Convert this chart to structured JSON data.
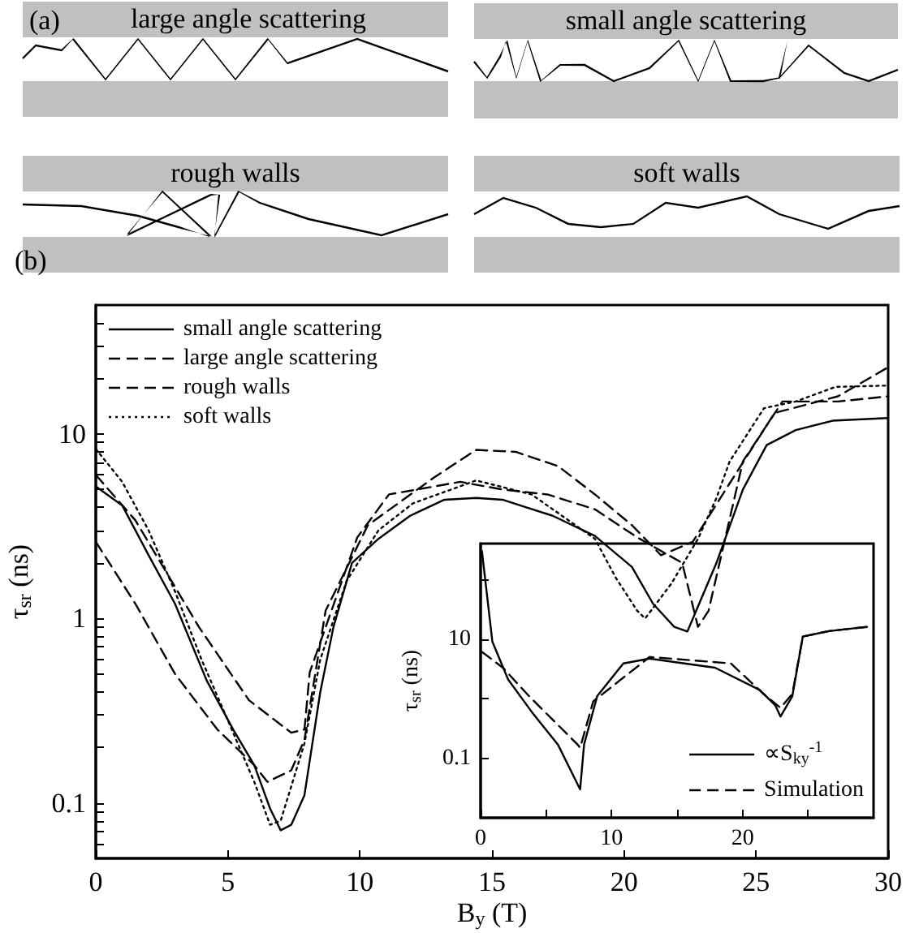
{
  "chart_data": [
    {
      "type": "other",
      "title": "(a)",
      "annotations": [
        "large angle scattering",
        "small angle scattering",
        "rough walls",
        "soft walls"
      ]
    },
    {
      "type": "line",
      "title": "(b)",
      "xlabel": "B$_{y}$ (T)",
      "ylabel": "τ$_{sr}$ (ns)",
      "log": "y",
      "legend": "top left",
      "marker": "none",
      "xlim": [
        0,
        30
      ],
      "xticks": [
        0,
        5,
        10,
        15,
        20,
        25,
        30
      ],
      "ylim": [
        0.05,
        50
      ],
      "yticks": [
        {
          "value": 0.06,
          "label": null
        },
        {
          "value": 0.07,
          "label": null
        },
        {
          "value": 0.08,
          "label": null
        },
        {
          "value": 0.09,
          "label": null
        },
        0.1,
        {
          "value": 0.2,
          "label": null
        },
        {
          "value": 0.3,
          "label": null
        },
        {
          "value": 0.4,
          "label": null
        },
        {
          "value": 0.5,
          "label": null
        },
        {
          "value": 0.6,
          "label": null
        },
        {
          "value": 0.7,
          "label": null
        },
        {
          "value": 0.8,
          "label": null
        },
        {
          "value": 0.9,
          "label": null
        },
        1,
        {
          "value": 2,
          "label": null
        },
        {
          "value": 3,
          "label": null
        },
        {
          "value": 4,
          "label": null
        },
        {
          "value": 5,
          "label": null
        },
        {
          "value": 6,
          "label": null
        },
        {
          "value": 7,
          "label": null
        },
        {
          "value": 8,
          "label": null
        },
        {
          "value": 9,
          "label": null
        },
        10,
        {
          "value": 20,
          "label": null
        },
        {
          "value": 30,
          "label": null
        },
        {
          "value": 40,
          "label": null
        }
      ],
      "series": [
        {
          "name": "small angle scattering",
          "color": "#000000",
          "line_style": "solid",
          "x": [
            0,
            1,
            2,
            3,
            4.2,
            5.2,
            6,
            6.6,
            7,
            7.4,
            7.9,
            8.5,
            9,
            9.7,
            10.7,
            11.9,
            13.2,
            14.4,
            15.4,
            16.3,
            17.3,
            18.9,
            20.3,
            21.1,
            21.9,
            22.4,
            23.5,
            24.5,
            25.4,
            26.5,
            27.9,
            30
          ],
          "values": [
            5.2,
            4.1,
            2.2,
            1.2,
            0.46,
            0.25,
            0.16,
            0.093,
            0.071,
            0.076,
            0.11,
            0.4,
            0.9,
            2,
            2.7,
            3.6,
            4.4,
            4.5,
            4.4,
            4,
            3.6,
            2.8,
            1.9,
            1.2,
            0.9,
            0.85,
            2,
            5,
            8.7,
            10.5,
            11.8,
            12.2
          ]
        },
        {
          "name": "large angle scattering",
          "color": "#000000",
          "line_style": "dashed",
          "x": [
            0,
            1.5,
            3,
            4.6,
            6,
            6.5,
            7.4,
            7.9,
            8.7,
            10.3,
            12.8,
            14.4,
            15.9,
            17.5,
            18.9,
            20.3,
            21.4,
            22.6,
            24,
            25.7,
            28.1,
            30
          ],
          "values": [
            2.6,
            1.2,
            0.5,
            0.25,
            0.16,
            0.13,
            0.15,
            0.22,
            1.1,
            3.2,
            5.8,
            8.2,
            8,
            6.7,
            4.7,
            3.2,
            2.2,
            2.6,
            5.4,
            13,
            16,
            23
          ]
        },
        {
          "name": "rough walls",
          "color": "#000000",
          "line_style": "dashed",
          "x": [
            0,
            1.5,
            3.9,
            5.8,
            7.4,
            7.9,
            8.1,
            9.9,
            11.1,
            13.8,
            15.4,
            17.1,
            18.9,
            20.5,
            22.2,
            22.8,
            23.2,
            24.5,
            26,
            28.1,
            30
          ],
          "values": [
            6,
            3.4,
            0.9,
            0.36,
            0.24,
            0.25,
            0.51,
            2.75,
            4.7,
            5.5,
            5,
            4.7,
            3.9,
            2.75,
            2,
            0.9,
            1.1,
            7.1,
            15,
            15,
            16
          ]
        },
        {
          "name": "soft walls",
          "color": "#000000",
          "line_style": "dotted",
          "x": [
            0,
            1,
            2,
            3,
            4,
            5,
            6,
            6.6,
            7,
            7.9,
            8.5,
            9.5,
            10.7,
            12,
            14.4,
            16.5,
            17.9,
            18.9,
            19.7,
            20.5,
            20.8,
            21.8,
            22.8,
            23.5,
            24,
            25.3,
            26.5,
            28,
            30
          ],
          "values": [
            8.3,
            5.5,
            3,
            1.4,
            0.6,
            0.28,
            0.13,
            0.076,
            0.08,
            0.21,
            0.6,
            1.6,
            3,
            4.2,
            5.6,
            4.7,
            3.4,
            2.7,
            1.65,
            1.1,
            1,
            1.55,
            2.7,
            4.5,
            7.1,
            13.8,
            15,
            18,
            18.3
          ]
        }
      ]
    },
    {
      "type": "line",
      "ylabel": "τ$_{sr}$ (ns)",
      "log": "y",
      "legend": "bottom right",
      "marker": "none",
      "xlim": [
        0,
        30
      ],
      "xticks": [
        0,
        {
          "value": 5,
          "label": null
        },
        10,
        {
          "value": 15,
          "label": null
        },
        20,
        {
          "value": 25,
          "label": null
        }
      ],
      "ylim": [
        0.01,
        400
      ],
      "yticks": [
        0.1,
        {
          "value": 1,
          "label": null
        },
        10,
        {
          "value": 100,
          "label": null
        }
      ],
      "series": [
        {
          "name": "∝S$_{ky}$$^{-1}$",
          "color": "#000000",
          "line_style": "solid",
          "x": [
            0.1,
            0.9,
            2.1,
            3.9,
            5.9,
            7.6,
            7.9,
            8.9,
            10.9,
            12.9,
            17.9,
            21.3,
            22.5,
            22.9,
            23.8,
            24.6,
            26.6,
            29.5
          ],
          "values": [
            300,
            9,
            2.1,
            0.6,
            0.17,
            0.03,
            0.17,
            1.1,
            3.9,
            4.7,
            3.3,
            1.4,
            0.77,
            0.5,
            1.1,
            11,
            13.6,
            16
          ]
        },
        {
          "name": "Simulation",
          "color": "#000000",
          "line_style": "dashed",
          "x": [
            0.1,
            1.7,
            3.7,
            7.4,
            7.6,
            8.6,
            12.9,
            19.1,
            21.6,
            22.9,
            23.8,
            24.6,
            26.6,
            29.5
          ],
          "values": [
            6.1,
            3.3,
            1.1,
            0.17,
            0.15,
            0.9,
            5,
            3.9,
            1.2,
            0.7,
            1.2,
            11,
            13.6,
            16
          ]
        }
      ]
    }
  ]
}
